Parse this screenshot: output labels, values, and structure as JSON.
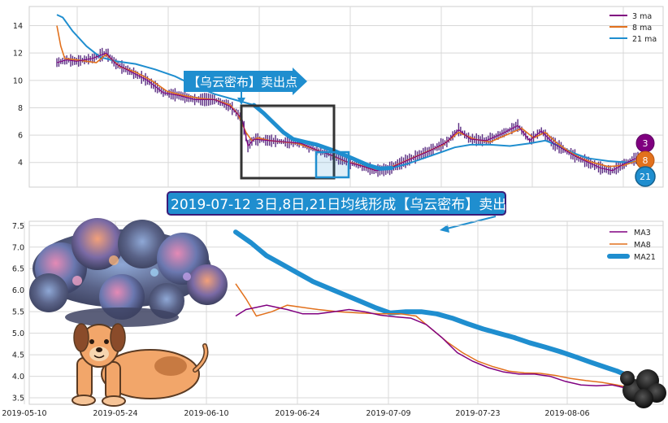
{
  "colors": {
    "ma3": "#800080",
    "ma8": "#e2711d",
    "ma21": "#1f8ecf",
    "price": "#5a2d82",
    "box_dark": "#333333",
    "box_blue": "#1f8ecf",
    "banner_bg": "#1f8ecf",
    "banner_border": "#3b1c78"
  },
  "top_chart": {
    "ylim": [
      2.2,
      15.4
    ],
    "yticks": [
      "4",
      "6",
      "8",
      "10",
      "12",
      "14"
    ],
    "legend": [
      "3 ma",
      "8 ma",
      "21 ma"
    ],
    "callout": "【乌云密布】卖出点",
    "badges": [
      "3",
      "8",
      "21"
    ],
    "series": {
      "ma21": [
        [
          0,
          14.8
        ],
        [
          3,
          14.6
        ],
        [
          8,
          13.6
        ],
        [
          15,
          12.5
        ],
        [
          22,
          11.7
        ],
        [
          30,
          11.4
        ],
        [
          40,
          11.2
        ],
        [
          50,
          10.8
        ],
        [
          60,
          10.3
        ],
        [
          70,
          9.6
        ],
        [
          80,
          9.0
        ],
        [
          90,
          8.6
        ],
        [
          100,
          8.2
        ],
        [
          105,
          7.6
        ],
        [
          110,
          6.9
        ],
        [
          115,
          6.2
        ],
        [
          120,
          5.7
        ],
        [
          126,
          5.5
        ],
        [
          132,
          5.3
        ],
        [
          140,
          4.9
        ],
        [
          150,
          4.3
        ],
        [
          158,
          3.8
        ],
        [
          164,
          3.55
        ],
        [
          170,
          3.6
        ],
        [
          178,
          3.9
        ],
        [
          186,
          4.3
        ],
        [
          194,
          4.7
        ],
        [
          202,
          5.1
        ],
        [
          210,
          5.3
        ],
        [
          220,
          5.3
        ],
        [
          230,
          5.2
        ],
        [
          240,
          5.4
        ],
        [
          248,
          5.6
        ],
        [
          255,
          5.2
        ],
        [
          262,
          4.7
        ],
        [
          270,
          4.3
        ],
        [
          280,
          4.1
        ],
        [
          290,
          4.0
        ],
        [
          295,
          4.1
        ]
      ],
      "ma8": [
        [
          0,
          14.0
        ],
        [
          2,
          12.5
        ],
        [
          4,
          11.6
        ],
        [
          10,
          11.5
        ],
        [
          20,
          11.3
        ],
        [
          25,
          11.9
        ],
        [
          32,
          11.0
        ],
        [
          40,
          10.6
        ],
        [
          48,
          10.0
        ],
        [
          56,
          9.2
        ],
        [
          64,
          8.9
        ],
        [
          72,
          8.7
        ],
        [
          80,
          8.6
        ],
        [
          88,
          8.2
        ],
        [
          92,
          7.5
        ],
        [
          96,
          6.2
        ],
        [
          99,
          5.6
        ],
        [
          102,
          5.8
        ],
        [
          108,
          5.6
        ],
        [
          115,
          5.5
        ],
        [
          122,
          5.4
        ],
        [
          130,
          5.0
        ],
        [
          138,
          4.6
        ],
        [
          146,
          4.1
        ],
        [
          154,
          3.8
        ],
        [
          160,
          3.5
        ],
        [
          166,
          3.5
        ],
        [
          172,
          3.8
        ],
        [
          180,
          4.3
        ],
        [
          188,
          4.8
        ],
        [
          196,
          5.3
        ],
        [
          204,
          6.2
        ],
        [
          212,
          5.7
        ],
        [
          220,
          5.5
        ],
        [
          228,
          6.0
        ],
        [
          236,
          6.5
        ],
        [
          242,
          5.8
        ],
        [
          248,
          6.2
        ],
        [
          254,
          5.4
        ],
        [
          260,
          4.8
        ],
        [
          266,
          4.3
        ],
        [
          272,
          4.0
        ],
        [
          280,
          3.7
        ],
        [
          288,
          3.8
        ],
        [
          294,
          4.1
        ]
      ],
      "ma3": [
        [
          0,
          11.3
        ],
        [
          5,
          11.5
        ],
        [
          10,
          11.4
        ],
        [
          18,
          11.6
        ],
        [
          25,
          12.0
        ],
        [
          30,
          11.2
        ],
        [
          38,
          10.6
        ],
        [
          46,
          10.0
        ],
        [
          54,
          9.1
        ],
        [
          62,
          8.9
        ],
        [
          70,
          8.6
        ],
        [
          80,
          8.6
        ],
        [
          88,
          8.1
        ],
        [
          94,
          7.2
        ],
        [
          97,
          5.2
        ],
        [
          100,
          5.7
        ],
        [
          108,
          5.6
        ],
        [
          116,
          5.5
        ],
        [
          124,
          5.4
        ],
        [
          132,
          4.9
        ],
        [
          140,
          4.5
        ],
        [
          148,
          4.0
        ],
        [
          156,
          3.7
        ],
        [
          162,
          3.4
        ],
        [
          168,
          3.5
        ],
        [
          174,
          3.9
        ],
        [
          182,
          4.4
        ],
        [
          190,
          4.9
        ],
        [
          198,
          5.5
        ],
        [
          204,
          6.4
        ],
        [
          210,
          5.7
        ],
        [
          218,
          5.6
        ],
        [
          226,
          6.1
        ],
        [
          234,
          6.7
        ],
        [
          240,
          5.6
        ],
        [
          246,
          6.3
        ],
        [
          252,
          5.4
        ],
        [
          258,
          4.9
        ],
        [
          264,
          4.4
        ],
        [
          270,
          4.0
        ],
        [
          276,
          3.6
        ],
        [
          282,
          3.4
        ],
        [
          288,
          3.9
        ],
        [
          294,
          4.3
        ]
      ]
    }
  },
  "bottom_chart": {
    "ylim": [
      3.35,
      7.6
    ],
    "yticks": [
      "3.5",
      "4.0",
      "4.5",
      "5.0",
      "5.5",
      "6.0",
      "6.5",
      "7.0",
      "7.5"
    ],
    "xticks": [
      "2019-05-10",
      "2019-05-24",
      "2019-06-10",
      "2019-06-24",
      "2019-07-09",
      "2019-07-23",
      "2019-08-06"
    ],
    "legend": [
      "MA3",
      "MA8",
      "MA21"
    ],
    "series": {
      "ma21": [
        [
          0,
          7.35
        ],
        [
          3,
          7.1
        ],
        [
          6,
          6.8
        ],
        [
          9,
          6.6
        ],
        [
          12,
          6.4
        ],
        [
          15,
          6.2
        ],
        [
          18,
          6.05
        ],
        [
          21,
          5.9
        ],
        [
          24,
          5.75
        ],
        [
          27,
          5.6
        ],
        [
          30,
          5.47
        ],
        [
          33,
          5.5
        ],
        [
          36,
          5.5
        ],
        [
          39,
          5.45
        ],
        [
          42,
          5.35
        ],
        [
          45,
          5.22
        ],
        [
          48,
          5.1
        ],
        [
          51,
          5.0
        ],
        [
          54,
          4.9
        ],
        [
          57,
          4.78
        ],
        [
          60,
          4.68
        ],
        [
          63,
          4.57
        ],
        [
          66,
          4.45
        ],
        [
          69,
          4.32
        ],
        [
          72,
          4.2
        ],
        [
          74,
          4.12
        ],
        [
          76,
          4.02
        ]
      ],
      "ma8": [
        [
          0,
          6.15
        ],
        [
          2,
          5.8
        ],
        [
          4,
          5.4
        ],
        [
          7,
          5.5
        ],
        [
          10,
          5.65
        ],
        [
          13,
          5.6
        ],
        [
          16,
          5.55
        ],
        [
          20,
          5.5
        ],
        [
          24,
          5.47
        ],
        [
          28,
          5.45
        ],
        [
          32,
          5.45
        ],
        [
          35,
          5.4
        ],
        [
          38,
          5.1
        ],
        [
          41,
          4.8
        ],
        [
          44,
          4.55
        ],
        [
          47,
          4.35
        ],
        [
          50,
          4.22
        ],
        [
          53,
          4.12
        ],
        [
          56,
          4.08
        ],
        [
          59,
          4.07
        ],
        [
          62,
          4.02
        ],
        [
          65,
          3.95
        ],
        [
          68,
          3.9
        ],
        [
          71,
          3.86
        ],
        [
          74,
          3.8
        ],
        [
          76,
          3.75
        ]
      ],
      "ma3": [
        [
          0,
          5.4
        ],
        [
          2,
          5.55
        ],
        [
          4,
          5.6
        ],
        [
          6,
          5.65
        ],
        [
          8,
          5.6
        ],
        [
          10,
          5.55
        ],
        [
          13,
          5.45
        ],
        [
          16,
          5.45
        ],
        [
          19,
          5.5
        ],
        [
          22,
          5.55
        ],
        [
          25,
          5.5
        ],
        [
          28,
          5.42
        ],
        [
          31,
          5.38
        ],
        [
          34,
          5.35
        ],
        [
          37,
          5.2
        ],
        [
          40,
          4.9
        ],
        [
          43,
          4.55
        ],
        [
          46,
          4.35
        ],
        [
          49,
          4.2
        ],
        [
          52,
          4.1
        ],
        [
          55,
          4.05
        ],
        [
          58,
          4.05
        ],
        [
          61,
          4.0
        ],
        [
          64,
          3.88
        ],
        [
          67,
          3.8
        ],
        [
          70,
          3.78
        ],
        [
          73,
          3.8
        ],
        [
          76,
          3.72
        ]
      ]
    }
  },
  "banner": {
    "text": "2019-07-12 3日,8日,21日均线形成【乌云密布】卖出点"
  }
}
